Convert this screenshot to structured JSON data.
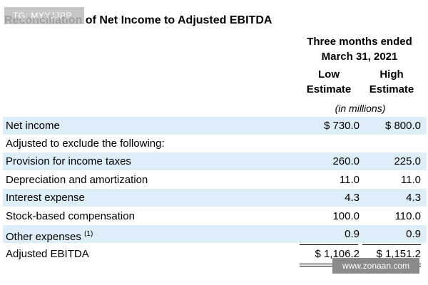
{
  "watermark_tl": "TG: MYYJJPP",
  "title": "Reconciliation of Net Income to Adjusted EBITDA",
  "header": {
    "period_line1": "Three months ended",
    "period_line2": "March 31, 2021",
    "low_line1": "Low",
    "low_line2": "Estimate",
    "high_line1": "High",
    "high_line2": "Estimate",
    "units": "(in millions)"
  },
  "rows": [
    {
      "label": "Net income",
      "low": "$ 730.0",
      "high": "$ 800.0"
    },
    {
      "label": "Adjusted to exclude the following:",
      "low": "",
      "high": ""
    },
    {
      "label": "Provision for income taxes",
      "low": "260.0",
      "high": "225.0"
    },
    {
      "label": "Depreciation and amortization",
      "low": "11.0",
      "high": "11.0"
    },
    {
      "label": "Interest expense",
      "low": "4.3",
      "high": "4.3"
    },
    {
      "label": "Stock-based compensation",
      "low": "100.0",
      "high": "110.0"
    },
    {
      "label": "Other expenses",
      "footnote": "(1)",
      "low": "0.9",
      "high": "0.9"
    },
    {
      "label": "Adjusted EBITDA",
      "low": "$ 1,106.2",
      "high": "$ 1,151.2"
    }
  ],
  "watermark_br": "www.zonaan.com"
}
